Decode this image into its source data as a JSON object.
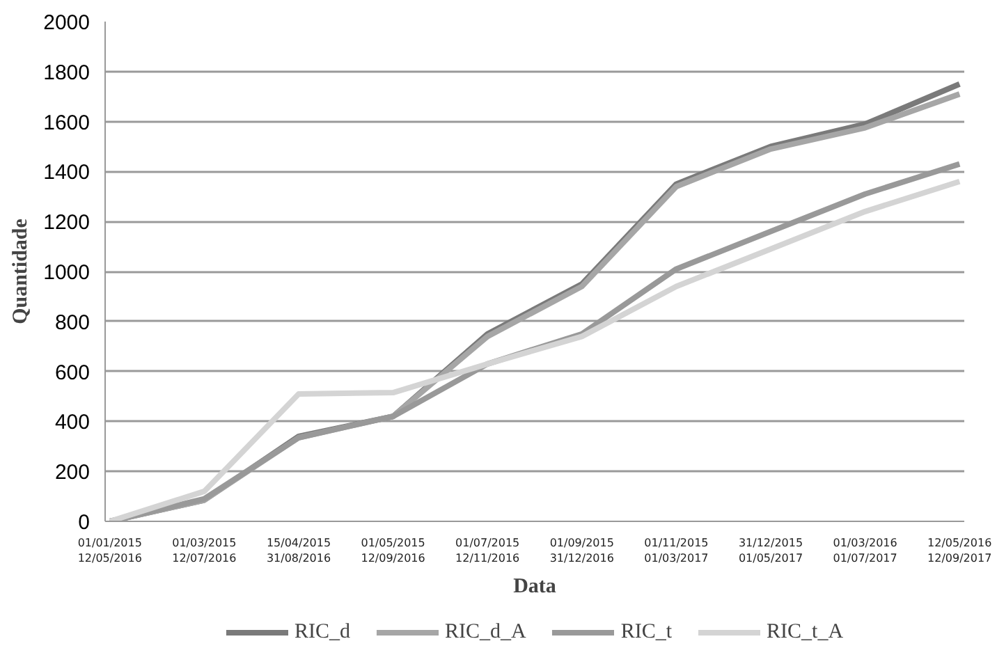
{
  "chart_data": {
    "type": "line",
    "xlabel": "Data",
    "ylabel": "Quantidade",
    "categories": [
      "01/01/2015\n12/05/2016",
      "01/03/2015\n12/07/2016",
      "15/04/2015\n31/08/2016",
      "01/05/2015\n12/09/2016",
      "01/07/2015\n12/11/2016",
      "01/09/2015\n31/12/2016",
      "01/11/2015\n01/03/2017",
      "31/12/2015\n01/05/2017",
      "01/03/2016\n01/07/2017",
      "12/05/2016\n12/09/2017"
    ],
    "series": [
      {
        "name": "RIC_d",
        "color": "#7a7a7a",
        "values": [
          0,
          85,
          340,
          420,
          750,
          950,
          1350,
          1500,
          1590,
          1750
        ]
      },
      {
        "name": "RIC_d_A",
        "color": "#a6a6a6",
        "values": [
          0,
          85,
          335,
          420,
          740,
          940,
          1340,
          1490,
          1575,
          1710
        ]
      },
      {
        "name": "RIC_t",
        "color": "#999999",
        "values": [
          0,
          90,
          335,
          420,
          630,
          750,
          1010,
          1160,
          1310,
          1430
        ]
      },
      {
        "name": "RIC_t_A",
        "color": "#d4d4d4",
        "values": [
          0,
          120,
          510,
          515,
          630,
          740,
          940,
          1090,
          1240,
          1360
        ]
      }
    ],
    "ylim": [
      0,
      2000
    ],
    "yticks": [
      0,
      200,
      400,
      600,
      800,
      1000,
      1200,
      1400,
      1600,
      1800,
      2000
    ],
    "grid": "y",
    "legend": "bottom",
    "marker": "none",
    "line_style": "solid"
  }
}
